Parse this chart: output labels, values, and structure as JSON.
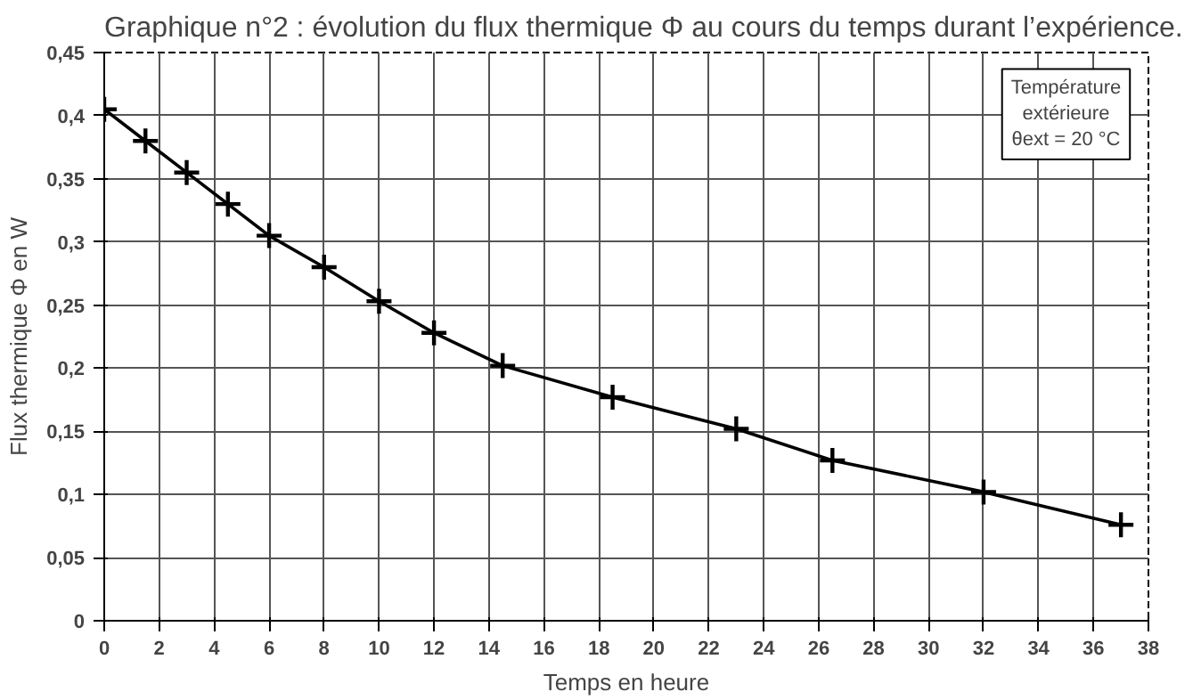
{
  "chart_data": {
    "type": "line",
    "title": "Graphique n°2 : évolution du flux thermique Φ au cours du temps durant l’expérience.",
    "xlabel": "Temps en heure",
    "ylabel": "Flux thermique Φ en W",
    "x": [
      0,
      1.5,
      3,
      4.5,
      6,
      8,
      10,
      12,
      14.5,
      18.5,
      23,
      26.5,
      32,
      37
    ],
    "series": [
      {
        "color": "#000000",
        "values": [
          0.405,
          0.38,
          0.355,
          0.33,
          0.305,
          0.28,
          0.253,
          0.228,
          0.202,
          0.177,
          0.152,
          0.127,
          0.102,
          0.076
        ]
      }
    ],
    "xlim": [
      0,
      38
    ],
    "xticks": [
      0,
      2,
      4,
      6,
      8,
      10,
      12,
      14,
      16,
      18,
      20,
      22,
      24,
      26,
      28,
      30,
      32,
      34,
      36,
      38
    ],
    "ylim": [
      0,
      0.45
    ],
    "yticks": [
      0,
      {
        "value": 0.05,
        "label": "0,05"
      },
      {
        "value": 0.1,
        "label": "0,1"
      },
      {
        "value": 0.15,
        "label": "0,15"
      },
      {
        "value": 0.2,
        "label": "0,2"
      },
      {
        "value": 0.25,
        "label": "0,25"
      },
      {
        "value": 0.3,
        "label": "0,3"
      },
      {
        "value": 0.35,
        "label": "0,35"
      },
      {
        "value": 0.4,
        "label": "0,4"
      },
      {
        "value": 0.45,
        "label": "0,45"
      }
    ],
    "annotations": [
      "Température\nextérieure\nθext = 20 °C"
    ],
    "grid": true,
    "marker": "cross",
    "line_style": "solid"
  }
}
